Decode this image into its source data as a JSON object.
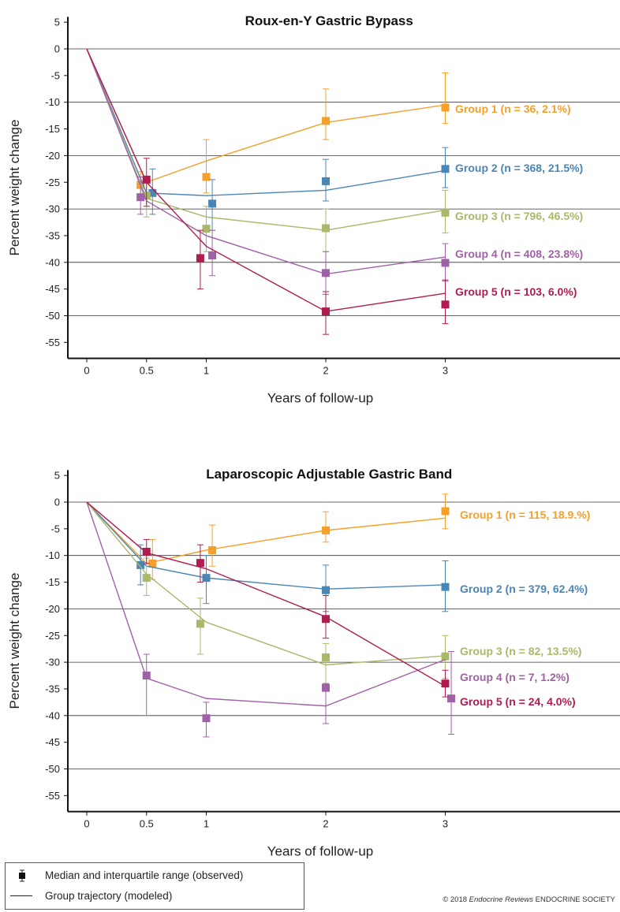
{
  "chart_data": [
    {
      "type": "line",
      "title": "Roux-en-Y Gastric Bypass",
      "xlabel": "Years of follow-up",
      "ylabel": "Percent  weight change",
      "xticks": [
        0,
        0.5,
        1,
        2,
        3
      ],
      "xtick_labels": [
        "0",
        "0.5",
        "1",
        "2",
        "3"
      ],
      "xlim": [
        -0.15,
        4.4
      ],
      "ylim": [
        -58,
        6
      ],
      "yticks": [
        5,
        0,
        -5,
        -10,
        -15,
        -20,
        -25,
        -30,
        -35,
        -40,
        -45,
        -50,
        -55
      ],
      "ytick_labels": [
        "5",
        "0",
        "-5",
        "-10",
        "-15",
        "-20",
        "-25",
        "-30",
        "-35",
        "-40",
        "-45",
        "-50",
        "-55"
      ],
      "grid": "horizontal",
      "series": [
        {
          "name": "Group 1 (n = 36, 2.1%)",
          "color": "#f5a02a",
          "modeled": [
            [
              0,
              0
            ],
            [
              0.5,
              -25
            ],
            [
              1,
              -21
            ],
            [
              2,
              -13.8
            ],
            [
              3,
              -10.5
            ]
          ],
          "observed": [
            [
              0.45,
              -25.5,
              -28,
              -23
            ],
            [
              1,
              -24,
              -27,
              -17
            ],
            [
              2,
              -13.5,
              -17,
              -7.5
            ],
            [
              3,
              -11,
              -14,
              -4.5
            ]
          ]
        },
        {
          "name": "Group 2 (n = 368, 21.5%)",
          "color": "#4a86b5",
          "modeled": [
            [
              0,
              0
            ],
            [
              0.5,
              -27
            ],
            [
              1,
              -27.5
            ],
            [
              2,
              -26.5
            ],
            [
              3,
              -22.8
            ]
          ],
          "observed": [
            [
              0.55,
              -27,
              -31,
              -22.5
            ],
            [
              1.05,
              -29,
              -34,
              -24.5
            ],
            [
              2,
              -24.8,
              -28.5,
              -20.7
            ],
            [
              3,
              -22.5,
              -26,
              -18.5
            ]
          ]
        },
        {
          "name": "Group 3 (n = 796, 46.5%)",
          "color": "#a9b86a",
          "modeled": [
            [
              0,
              0
            ],
            [
              0.5,
              -28
            ],
            [
              1,
              -31.5
            ],
            [
              2,
              -34
            ],
            [
              3,
              -30.2
            ]
          ],
          "observed": [
            [
              0.5,
              -27.5,
              -31.5,
              -24
            ],
            [
              1,
              -33.7,
              -38,
              -29.5
            ],
            [
              2,
              -33.6,
              -38,
              -30
            ],
            [
              3,
              -30.7,
              -34.5,
              -26.5
            ]
          ]
        },
        {
          "name": "Group 4 (n = 408, 23.8%)",
          "color": "#a062a6",
          "modeled": [
            [
              0,
              0
            ],
            [
              0.5,
              -28.5
            ],
            [
              1,
              -35
            ],
            [
              2,
              -42.2
            ],
            [
              3,
              -39
            ]
          ],
          "observed": [
            [
              0.45,
              -27.8,
              -31,
              -24
            ],
            [
              1.05,
              -38.7,
              -42.5,
              -34
            ],
            [
              2,
              -42,
              -46,
              -38
            ],
            [
              3,
              -40.1,
              -43.5,
              -36.5
            ]
          ]
        },
        {
          "name": "Group 5 (n = 103, 6.0%)",
          "color": "#b01c4f",
          "modeled": [
            [
              0,
              0
            ],
            [
              0.5,
              -25
            ],
            [
              1,
              -37
            ],
            [
              2,
              -49.2
            ],
            [
              3,
              -45.8
            ]
          ],
          "observed": [
            [
              0.5,
              -24.5,
              -29.5,
              -20.5
            ],
            [
              0.95,
              -39.2,
              -45,
              -34
            ],
            [
              2,
              -49.2,
              -53.5,
              -45.5
            ],
            [
              3,
              -47.9,
              -51.5,
              -43.3
            ]
          ]
        }
      ]
    },
    {
      "type": "line",
      "title": "Laparoscopic Adjustable Gastric Band",
      "xlabel": "Years of follow-up",
      "ylabel": "Percent  weight change",
      "xticks": [
        0,
        0.5,
        1,
        2,
        3
      ],
      "xtick_labels": [
        "0",
        "0.5",
        "1",
        "2",
        "3"
      ],
      "xlim": [
        -0.15,
        4.4
      ],
      "ylim": [
        -58,
        6
      ],
      "yticks": [
        5,
        0,
        -5,
        -10,
        -15,
        -20,
        -25,
        -30,
        -35,
        -40,
        -45,
        -50,
        -55
      ],
      "ytick_labels": [
        "5",
        "0",
        "-5",
        "-10",
        "-15",
        "-20",
        "-25",
        "-30",
        "-35",
        "-40",
        "-45",
        "-50",
        "-55"
      ],
      "grid": "horizontal",
      "series": [
        {
          "name": "Group 1 (n = 115, 18.9.%)",
          "color": "#f5a02a",
          "modeled": [
            [
              0,
              0
            ],
            [
              0.5,
              -11.5
            ],
            [
              1,
              -9
            ],
            [
              2,
              -5.3
            ],
            [
              3,
              -3
            ]
          ],
          "observed": [
            [
              0.55,
              -11.5,
              -14.5,
              -7
            ],
            [
              1.05,
              -9,
              -12,
              -4.3
            ],
            [
              2,
              -5.3,
              -7.5,
              -1.8
            ],
            [
              3,
              -1.7,
              -5,
              1.5
            ]
          ]
        },
        {
          "name": "Group 2 (n = 379, 62.4%)",
          "color": "#4a86b5",
          "modeled": [
            [
              0,
              0
            ],
            [
              0.5,
              -12
            ],
            [
              1,
              -14.2
            ],
            [
              2,
              -16.3
            ],
            [
              3,
              -15.5
            ]
          ],
          "observed": [
            [
              0.45,
              -11.8,
              -15.5,
              -8
            ],
            [
              1,
              -14.2,
              -19,
              -10
            ],
            [
              2,
              -16.5,
              -20.5,
              -11.8
            ],
            [
              3,
              -15.9,
              -20.5,
              -11
            ]
          ]
        },
        {
          "name": "Group 3 (n = 82, 13.5%)",
          "color": "#a9b86a",
          "modeled": [
            [
              0,
              0
            ],
            [
              0.5,
              -13.5
            ],
            [
              1,
              -22.5
            ],
            [
              2,
              -30.5
            ],
            [
              3,
              -28.8
            ]
          ],
          "observed": [
            [
              0.5,
              -14.2,
              -17.5,
              -10.5
            ],
            [
              0.95,
              -22.8,
              -28.5,
              -18
            ],
            [
              2,
              -29.1,
              -34,
              -26.5
            ],
            [
              3,
              -28.9,
              -33,
              -25
            ]
          ]
        },
        {
          "name": "Group 4 (n = 7, 1.2%)",
          "color": "#a062a6",
          "modeled": [
            [
              0,
              0
            ],
            [
              0.5,
              -33
            ],
            [
              1,
              -36.8
            ],
            [
              2,
              -38.2
            ],
            [
              3,
              -29.5
            ]
          ],
          "observed": [
            [
              0.5,
              -32.5,
              -40,
              -28.5
            ],
            [
              1,
              -40.5,
              -44,
              -37.5
            ],
            [
              2,
              -34.8,
              -41.5,
              -34
            ],
            [
              3.05,
              -36.8,
              -43.5,
              -28
            ]
          ]
        },
        {
          "name": "Group 5 (n = 24, 4.0%)",
          "color": "#b01c4f",
          "modeled": [
            [
              0,
              0
            ],
            [
              0.5,
              -9.5
            ],
            [
              1,
              -12.5
            ],
            [
              2,
              -21.5
            ],
            [
              3,
              -34.5
            ]
          ],
          "observed": [
            [
              0.5,
              -9.3,
              -11.5,
              -7
            ],
            [
              0.95,
              -11.4,
              -15,
              -8
            ],
            [
              2,
              -21.9,
              -25.5,
              -17.5
            ],
            [
              3,
              -34,
              -36.5,
              -31.5
            ]
          ]
        }
      ]
    }
  ],
  "legend": {
    "observed_label": "Median and interquartile range (observed)",
    "modeled_label": "Group trajectory (modeled)"
  },
  "footer": {
    "copyright_prefix": "© 2018 ",
    "journal": "Endocrine Reviews",
    "publisher": " ENDOCRINE SOCIETY"
  }
}
